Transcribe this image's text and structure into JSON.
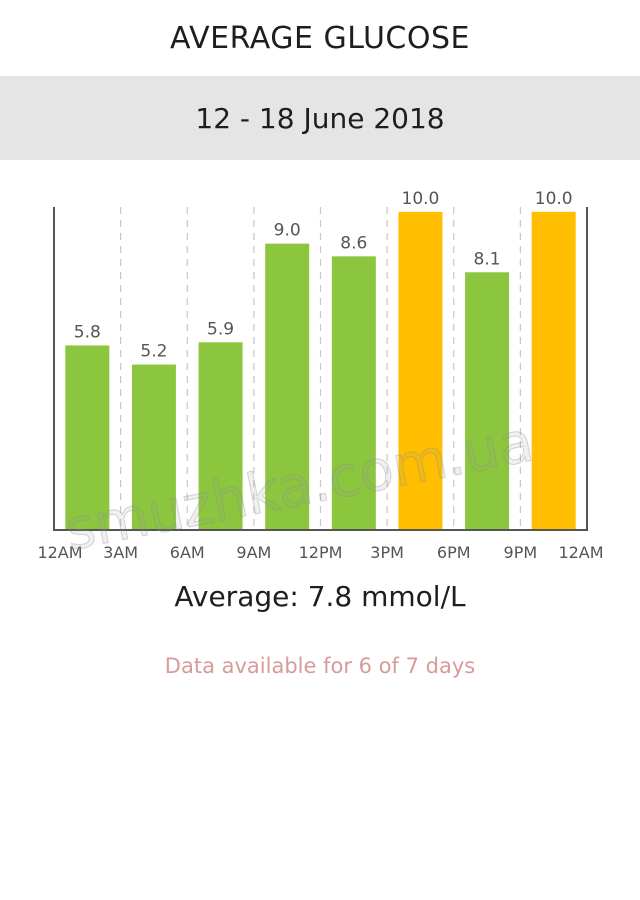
{
  "header": {
    "title": "AVERAGE GLUCOSE"
  },
  "date_range": "12 - 18 June 2018",
  "average_text": "Average: 7.8 mmol/L",
  "availability_text": "Data available for 6 of 7 days",
  "watermark": "smuzhka.com.ua",
  "colors": {
    "normal": "#8cc63e",
    "high": "#ffbf00",
    "axis": "#555555",
    "gridline": "#c8c8c8",
    "availability": "#d99a9a"
  },
  "chart_data": {
    "type": "bar",
    "title": "AVERAGE GLUCOSE",
    "xlabel": "",
    "ylabel": "",
    "x_ticks": [
      "12AM",
      "3AM",
      "6AM",
      "9AM",
      "12PM",
      "3PM",
      "6PM",
      "9PM",
      "12AM"
    ],
    "categories": [
      "12AM-3AM",
      "3AM-6AM",
      "6AM-9AM",
      "9AM-12PM",
      "12PM-3PM",
      "3PM-6PM",
      "6PM-9PM",
      "9PM-12AM"
    ],
    "values": [
      5.8,
      5.2,
      5.9,
      9.0,
      8.6,
      10.0,
      8.1,
      10.0
    ],
    "value_labels": [
      "5.8",
      "5.2",
      "5.9",
      "9.0",
      "8.6",
      "10.0",
      "8.1",
      "10.0"
    ],
    "status": [
      "normal",
      "normal",
      "normal",
      "normal",
      "normal",
      "high",
      "normal",
      "high"
    ],
    "units": "mmol/L",
    "ylim": [
      0,
      11
    ],
    "grid": "vertical dashed",
    "legend": "none"
  }
}
